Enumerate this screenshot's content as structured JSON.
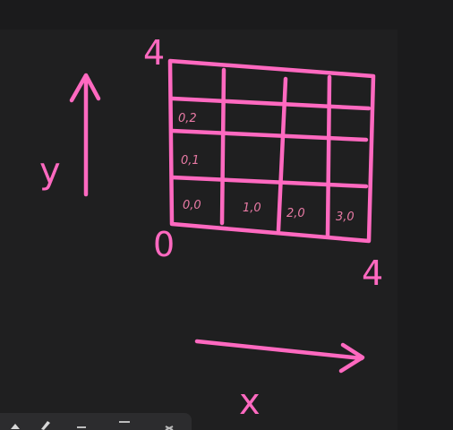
{
  "diagram": {
    "cells": [
      {
        "label": "0,0",
        "col": 0,
        "row": 0
      },
      {
        "label": "1,0",
        "col": 1,
        "row": 0
      },
      {
        "label": "2,0",
        "col": 2,
        "row": 0
      },
      {
        "label": "3,0",
        "col": 3,
        "row": 0
      },
      {
        "label": "0,1",
        "col": 0,
        "row": 1
      },
      {
        "label": "0,2",
        "col": 0,
        "row": 2
      }
    ],
    "corner_top": "4",
    "corner_origin": "0",
    "corner_right": "4",
    "axis_y": "y",
    "axis_x": "x",
    "ink_color": "#ff69c0"
  }
}
